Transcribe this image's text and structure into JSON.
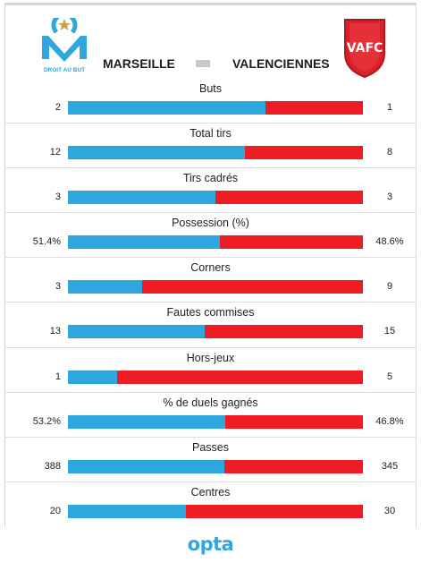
{
  "teams": {
    "home": {
      "name": "MARSEILLE",
      "crest_text": "DROIT AU BUT",
      "color": "#2ea7df"
    },
    "away": {
      "name": "VALENCIENNES",
      "crest_text": "VAFC",
      "color": "#ee1d23"
    }
  },
  "stats": [
    {
      "label": "Buts",
      "home": "2",
      "away": "1",
      "home_share": 0.67
    },
    {
      "label": "Total tirs",
      "home": "12",
      "away": "8",
      "home_share": 0.6
    },
    {
      "label": "Tirs cadrés",
      "home": "3",
      "away": "3",
      "home_share": 0.5
    },
    {
      "label": "Possession (%)",
      "home": "51.4%",
      "away": "48.6%",
      "home_share": 0.514
    },
    {
      "label": "Corners",
      "home": "3",
      "away": "9",
      "home_share": 0.25
    },
    {
      "label": "Fautes commises",
      "home": "13",
      "away": "15",
      "home_share": 0.464
    },
    {
      "label": "Hors-jeux",
      "home": "1",
      "away": "5",
      "home_share": 0.167
    },
    {
      "label": "% de duels gagnés",
      "home": "53.2%",
      "away": "46.8%",
      "home_share": 0.532
    },
    {
      "label": "Passes",
      "home": "388",
      "away": "345",
      "home_share": 0.529
    },
    {
      "label": "Centres",
      "home": "20",
      "away": "30",
      "home_share": 0.4
    }
  ],
  "footer": {
    "logo_text": "opta"
  }
}
